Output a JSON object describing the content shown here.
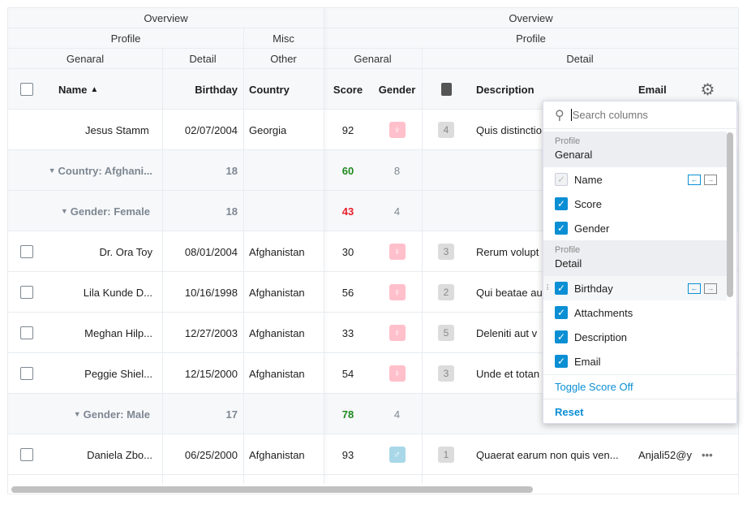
{
  "header": {
    "band1": {
      "left": "Overview",
      "right": "Overview"
    },
    "band2": {
      "profile_left": "Profile",
      "misc": "Misc",
      "profile_right": "Profile"
    },
    "band3": {
      "general_left": "Genaral",
      "detail_left": "Detail",
      "other": "Other",
      "general_right": "Genaral",
      "detail_right": "Detail"
    },
    "columns": {
      "name": "Name",
      "birthday": "Birthday",
      "country": "Country",
      "score": "Score",
      "gender": "Gender",
      "description": "Description",
      "email": "Email"
    }
  },
  "rows": [
    {
      "type": "data",
      "checkbox": false,
      "name": "Jesus Stamm",
      "birthday": "02/07/2004",
      "country": "Georgia",
      "score": "92",
      "gender": "female",
      "attachments": "4",
      "description": "Quis distinctio",
      "email": ""
    },
    {
      "type": "group",
      "label": "Country: Afghani...",
      "birthday": "18",
      "score": "60",
      "score_color": "#1e8a1e",
      "gender": "8",
      "level": 0
    },
    {
      "type": "group",
      "label": "Gender: Female",
      "birthday": "18",
      "score": "43",
      "score_color": "#e8202a",
      "gender": "4",
      "level": 1
    },
    {
      "type": "data",
      "checkbox": true,
      "name": "Dr. Ora Toy",
      "birthday": "08/01/2004",
      "country": "Afghanistan",
      "score": "30",
      "gender": "female",
      "attachments": "3",
      "description": "Rerum volupt",
      "email": ""
    },
    {
      "type": "data",
      "checkbox": true,
      "name": "Lila Kunde D...",
      "birthday": "10/16/1998",
      "country": "Afghanistan",
      "score": "56",
      "gender": "female",
      "attachments": "2",
      "description": "Qui beatae au",
      "email": ""
    },
    {
      "type": "data",
      "checkbox": true,
      "name": "Meghan Hilp...",
      "birthday": "12/27/2003",
      "country": "Afghanistan",
      "score": "33",
      "gender": "female",
      "attachments": "5",
      "description": "Deleniti aut v",
      "email": ""
    },
    {
      "type": "data",
      "checkbox": true,
      "name": "Peggie Shiel...",
      "birthday": "12/15/2000",
      "country": "Afghanistan",
      "score": "54",
      "gender": "female",
      "attachments": "3",
      "description": "Unde et totan",
      "email": ""
    },
    {
      "type": "group",
      "label": "Gender: Male",
      "birthday": "17",
      "score": "78",
      "score_color": "#1e8a1e",
      "gender": "4",
      "level": 1
    },
    {
      "type": "data",
      "checkbox": true,
      "name": "Daniela Zbo...",
      "birthday": "06/25/2000",
      "country": "Afghanistan",
      "score": "93",
      "gender": "male",
      "attachments": "1",
      "description": "Quaerat earum non quis ven...",
      "email": "Anjali52@y"
    }
  ],
  "popup": {
    "search_placeholder": "Search columns",
    "groups": [
      {
        "parent": "Profile",
        "title": "Genaral",
        "items": [
          {
            "label": "Name",
            "checked": true,
            "disabled": true
          },
          {
            "label": "Score",
            "checked": true
          },
          {
            "label": "Gender",
            "checked": true
          }
        ]
      },
      {
        "parent": "Profile",
        "title": "Detail",
        "items": [
          {
            "label": "Birthday",
            "checked": true
          },
          {
            "label": "Attachments",
            "checked": true
          },
          {
            "label": "Description",
            "checked": true
          },
          {
            "label": "Email",
            "checked": true
          }
        ]
      }
    ],
    "toggle_label": "Toggle Score Off",
    "reset_label": "Reset"
  },
  "colors": {
    "accent": "#0b8fd4",
    "female": "#ffc0cb",
    "male": "#a8d8e8"
  }
}
